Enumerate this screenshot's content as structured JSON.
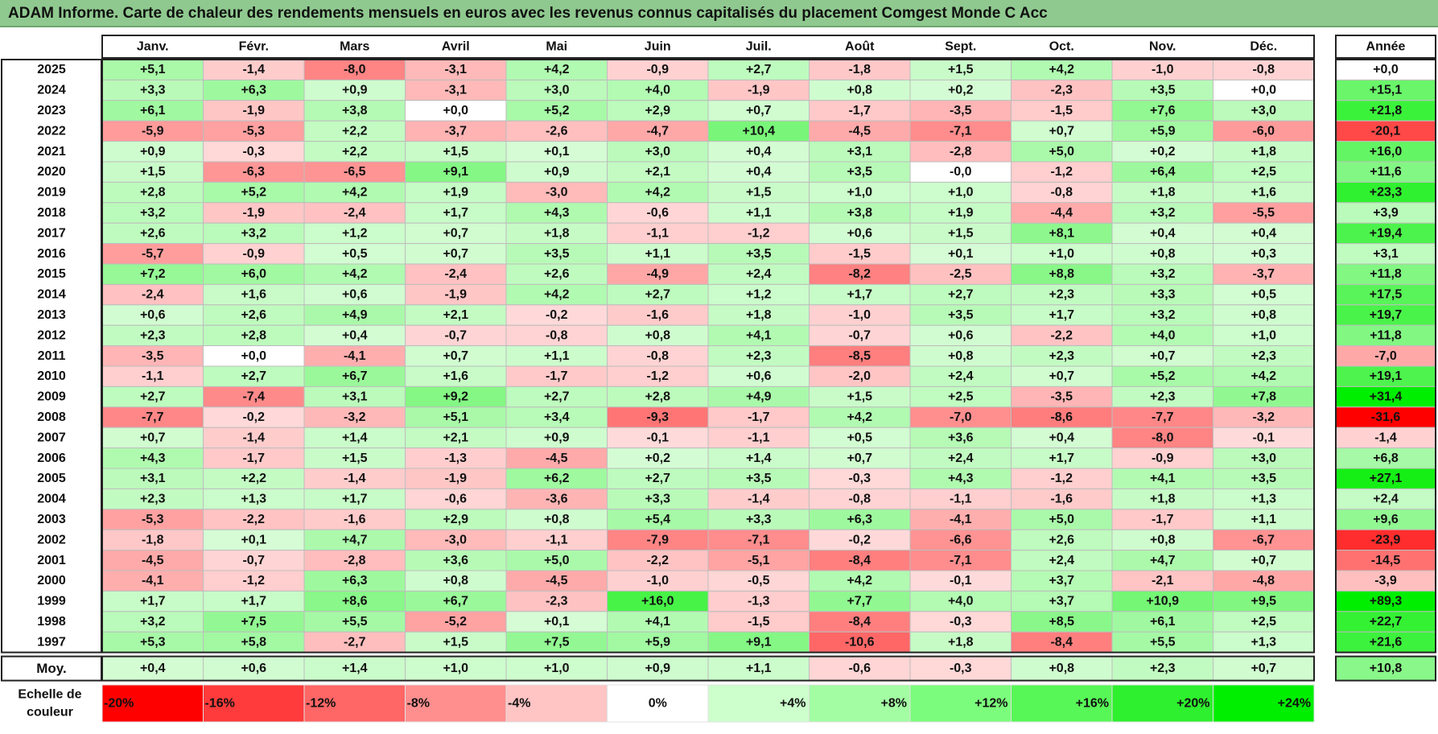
{
  "title": "ADAM Informe. Carte de chaleur des rendements mensuels en euros avec les revenus connus capitalisés du placement Comgest Monde C Acc",
  "chart_data": {
    "type": "heatmap",
    "columns": [
      "Janv.",
      "Févr.",
      "Mars",
      "Avril",
      "Mai",
      "Juin",
      "Juil.",
      "Août",
      "Sept.",
      "Oct.",
      "Nov.",
      "Déc."
    ],
    "year_column_label": "Année",
    "rows": [
      {
        "year": "2025",
        "months": [
          "+5,1",
          "-1,4",
          "-8,0",
          "-3,1",
          "+4,2",
          "-0,9",
          "+2,7",
          "-1,8",
          "+1,5",
          "+4,2",
          "-1,0",
          "-0,8"
        ],
        "annual": "+0,0"
      },
      {
        "year": "2024",
        "months": [
          "+3,3",
          "+6,3",
          "+0,9",
          "-3,1",
          "+3,0",
          "+4,0",
          "-1,9",
          "+0,8",
          "+0,2",
          "-2,3",
          "+3,5",
          "+0,0"
        ],
        "annual": "+15,1"
      },
      {
        "year": "2023",
        "months": [
          "+6,1",
          "-1,9",
          "+3,8",
          "+0,0",
          "+5,2",
          "+2,9",
          "+0,7",
          "-1,7",
          "-3,5",
          "-1,5",
          "+7,6",
          "+3,0"
        ],
        "annual": "+21,8"
      },
      {
        "year": "2022",
        "months": [
          "-5,9",
          "-5,3",
          "+2,2",
          "-3,7",
          "-2,6",
          "-4,7",
          "+10,4",
          "-4,5",
          "-7,1",
          "+0,7",
          "+5,9",
          "-6,0"
        ],
        "annual": "-20,1"
      },
      {
        "year": "2021",
        "months": [
          "+0,9",
          "-0,3",
          "+2,2",
          "+1,5",
          "+0,1",
          "+3,0",
          "+0,4",
          "+3,1",
          "-2,8",
          "+5,0",
          "+0,2",
          "+1,8"
        ],
        "annual": "+16,0"
      },
      {
        "year": "2020",
        "months": [
          "+1,5",
          "-6,3",
          "-6,5",
          "+9,1",
          "+0,9",
          "+2,1",
          "+0,4",
          "+3,5",
          "-0,0",
          "-1,2",
          "+6,4",
          "+2,5"
        ],
        "annual": "+11,6"
      },
      {
        "year": "2019",
        "months": [
          "+2,8",
          "+5,2",
          "+4,2",
          "+1,9",
          "-3,0",
          "+4,2",
          "+1,5",
          "+1,0",
          "+1,0",
          "-0,8",
          "+1,8",
          "+1,6"
        ],
        "annual": "+23,3"
      },
      {
        "year": "2018",
        "months": [
          "+3,2",
          "-1,9",
          "-2,4",
          "+1,7",
          "+4,3",
          "-0,6",
          "+1,1",
          "+3,8",
          "+1,9",
          "-4,4",
          "+3,2",
          "-5,5"
        ],
        "annual": "+3,9"
      },
      {
        "year": "2017",
        "months": [
          "+2,6",
          "+3,2",
          "+1,2",
          "+0,7",
          "+1,8",
          "-1,1",
          "-1,2",
          "+0,6",
          "+1,5",
          "+8,1",
          "+0,4",
          "+0,4"
        ],
        "annual": "+19,4"
      },
      {
        "year": "2016",
        "months": [
          "-5,7",
          "-0,9",
          "+0,5",
          "+0,7",
          "+3,5",
          "+1,1",
          "+3,5",
          "-1,5",
          "+0,1",
          "+1,0",
          "+0,8",
          "+0,3"
        ],
        "annual": "+3,1"
      },
      {
        "year": "2015",
        "months": [
          "+7,2",
          "+6,0",
          "+4,2",
          "-2,4",
          "+2,6",
          "-4,9",
          "+2,4",
          "-8,2",
          "-2,5",
          "+8,8",
          "+3,2",
          "-3,7"
        ],
        "annual": "+11,8"
      },
      {
        "year": "2014",
        "months": [
          "-2,4",
          "+1,6",
          "+0,6",
          "-1,9",
          "+4,2",
          "+2,7",
          "+1,2",
          "+1,7",
          "+2,7",
          "+2,3",
          "+3,3",
          "+0,5"
        ],
        "annual": "+17,5"
      },
      {
        "year": "2013",
        "months": [
          "+0,6",
          "+2,6",
          "+4,9",
          "+2,1",
          "-0,2",
          "-1,6",
          "+1,8",
          "-1,0",
          "+3,5",
          "+1,7",
          "+3,2",
          "+0,8"
        ],
        "annual": "+19,7"
      },
      {
        "year": "2012",
        "months": [
          "+2,3",
          "+2,8",
          "+0,4",
          "-0,7",
          "-0,8",
          "+0,8",
          "+4,1",
          "-0,7",
          "+0,6",
          "-2,2",
          "+4,0",
          "+1,0"
        ],
        "annual": "+11,8"
      },
      {
        "year": "2011",
        "months": [
          "-3,5",
          "+0,0",
          "-4,1",
          "+0,7",
          "+1,1",
          "-0,8",
          "+2,3",
          "-8,5",
          "+0,8",
          "+2,3",
          "+0,7",
          "+2,3"
        ],
        "annual": "-7,0"
      },
      {
        "year": "2010",
        "months": [
          "-1,1",
          "+2,7",
          "+6,7",
          "+1,6",
          "-1,7",
          "-1,2",
          "+0,6",
          "-2,0",
          "+2,4",
          "+0,7",
          "+5,2",
          "+4,2"
        ],
        "annual": "+19,1"
      },
      {
        "year": "2009",
        "months": [
          "+2,7",
          "-7,4",
          "+3,1",
          "+9,2",
          "+2,7",
          "+2,8",
          "+4,9",
          "+1,5",
          "+2,5",
          "-3,5",
          "+2,3",
          "+7,8"
        ],
        "annual": "+31,4"
      },
      {
        "year": "2008",
        "months": [
          "-7,7",
          "-0,2",
          "-3,2",
          "+5,1",
          "+3,4",
          "-9,3",
          "-1,7",
          "+4,2",
          "-7,0",
          "-8,6",
          "-7,7",
          "-3,2"
        ],
        "annual": "-31,6"
      },
      {
        "year": "2007",
        "months": [
          "+0,7",
          "-1,4",
          "+1,4",
          "+2,1",
          "+0,9",
          "-0,1",
          "-1,1",
          "+0,5",
          "+3,6",
          "+0,4",
          "-8,0",
          "-0,1"
        ],
        "annual": "-1,4"
      },
      {
        "year": "2006",
        "months": [
          "+4,3",
          "-1,7",
          "+1,5",
          "-1,3",
          "-4,5",
          "+0,2",
          "+1,4",
          "+0,7",
          "+2,4",
          "+1,7",
          "-0,9",
          "+3,0"
        ],
        "annual": "+6,8"
      },
      {
        "year": "2005",
        "months": [
          "+3,1",
          "+2,2",
          "-1,4",
          "-1,9",
          "+6,2",
          "+2,7",
          "+3,5",
          "-0,3",
          "+4,3",
          "-1,2",
          "+4,1",
          "+3,5"
        ],
        "annual": "+27,1"
      },
      {
        "year": "2004",
        "months": [
          "+2,3",
          "+1,3",
          "+1,7",
          "-0,6",
          "-3,6",
          "+3,3",
          "-1,4",
          "-0,8",
          "-1,1",
          "-1,6",
          "+1,8",
          "+1,3"
        ],
        "annual": "+2,4"
      },
      {
        "year": "2003",
        "months": [
          "-5,3",
          "-2,2",
          "-1,6",
          "+2,9",
          "+0,8",
          "+5,4",
          "+3,3",
          "+6,3",
          "-4,1",
          "+5,0",
          "-1,7",
          "+1,1"
        ],
        "annual": "+9,6"
      },
      {
        "year": "2002",
        "months": [
          "-1,8",
          "+0,1",
          "+4,7",
          "-3,0",
          "-1,1",
          "-7,9",
          "-7,1",
          "-0,2",
          "-6,6",
          "+2,6",
          "+0,8",
          "-6,7"
        ],
        "annual": "-23,9"
      },
      {
        "year": "2001",
        "months": [
          "-4,5",
          "-0,7",
          "-2,8",
          "+3,6",
          "+5,0",
          "-2,2",
          "-5,1",
          "-8,4",
          "-7,1",
          "+2,4",
          "+4,7",
          "+0,7"
        ],
        "annual": "-14,5"
      },
      {
        "year": "2000",
        "months": [
          "-4,1",
          "-1,2",
          "+6,3",
          "+0,8",
          "-4,5",
          "-1,0",
          "-0,5",
          "+4,2",
          "-0,1",
          "+3,7",
          "-2,1",
          "-4,8"
        ],
        "annual": "-3,9"
      },
      {
        "year": "1999",
        "months": [
          "+1,7",
          "+1,7",
          "+8,6",
          "+6,7",
          "-2,3",
          "+16,0",
          "-1,3",
          "+7,7",
          "+4,0",
          "+3,7",
          "+10,9",
          "+9,5"
        ],
        "annual": "+89,3"
      },
      {
        "year": "1998",
        "months": [
          "+3,2",
          "+7,5",
          "+5,5",
          "-5,2",
          "+0,1",
          "+4,1",
          "-1,5",
          "-8,4",
          "-0,3",
          "+8,5",
          "+6,1",
          "+2,5"
        ],
        "annual": "+22,7"
      },
      {
        "year": "1997",
        "months": [
          "+5,3",
          "+5,8",
          "-2,7",
          "+1,5",
          "+7,5",
          "+5,9",
          "+9,1",
          "-10,6",
          "+1,8",
          "-8,4",
          "+5,5",
          "+1,3"
        ],
        "annual": "+21,6"
      }
    ],
    "average": {
      "label": "Moy.",
      "months": [
        "+0,4",
        "+0,6",
        "+1,4",
        "+1,0",
        "+1,0",
        "+0,9",
        "+1,1",
        "-0,6",
        "-0,3",
        "+0,8",
        "+2,3",
        "+0,7"
      ],
      "annual": "+10,8"
    },
    "scale": {
      "label_line1": "Echelle de",
      "label_line2": "couleur",
      "labels": [
        "-20%",
        "-16%",
        "-12%",
        "-8%",
        "-4%",
        "0%",
        "+4%",
        "+8%",
        "+12%",
        "+16%",
        "+20%",
        "+24%"
      ],
      "values": [
        -20,
        -16,
        -12,
        -8,
        -4,
        0,
        4,
        8,
        12,
        16,
        20,
        24
      ],
      "colors": [
        "#ff0000",
        "#ff3b3b",
        "#ff6666",
        "#ff8f8f",
        "#ffc4c4",
        "#ffffff",
        "#ccffcc",
        "#a3fda3",
        "#7cfc7c",
        "#57f757",
        "#2ef02e",
        "#00ee00"
      ]
    }
  }
}
